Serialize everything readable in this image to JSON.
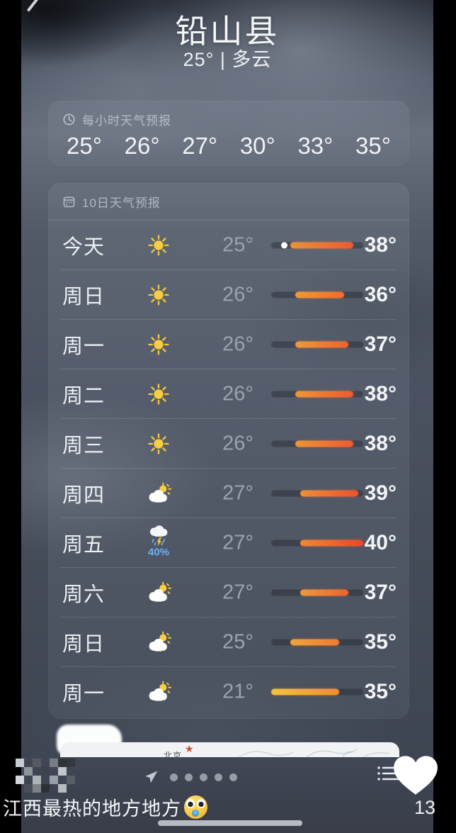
{
  "colors": {
    "accent_orange": "#ed5a2f",
    "accent_yellow": "#f0c43e",
    "precip_blue": "#6db2f4",
    "heart_white": "#ffffff"
  },
  "header": {
    "location": "铅山县",
    "subtitle": "25° | 多云"
  },
  "hourly": {
    "icon": "clock-icon",
    "title": "每小时天气预报",
    "temps": [
      "25°",
      "26°",
      "27°",
      "30°",
      "33°",
      "35°"
    ]
  },
  "daily": {
    "icon": "calendar-icon",
    "title": "10日天气预报",
    "temp_min": 21,
    "temp_max": 40,
    "rows": [
      {
        "day": "今天",
        "icon": "sun",
        "low": 25,
        "high": 38,
        "low_label": "25°",
        "high_label": "38°",
        "current_dot": true,
        "bar": [
          "#e8923b",
          "#ed5a2f"
        ]
      },
      {
        "day": "周日",
        "icon": "sun",
        "low": 26,
        "high": 36,
        "low_label": "26°",
        "high_label": "36°",
        "current_dot": false,
        "bar": [
          "#ec9a38",
          "#ed6c2e"
        ]
      },
      {
        "day": "周一",
        "icon": "sun",
        "low": 26,
        "high": 37,
        "low_label": "26°",
        "high_label": "37°",
        "current_dot": false,
        "bar": [
          "#ec9a38",
          "#ed632e"
        ]
      },
      {
        "day": "周二",
        "icon": "sun",
        "low": 26,
        "high": 38,
        "low_label": "26°",
        "high_label": "38°",
        "current_dot": false,
        "bar": [
          "#ec9538",
          "#ed5a2f"
        ]
      },
      {
        "day": "周三",
        "icon": "sun",
        "low": 26,
        "high": 38,
        "low_label": "26°",
        "high_label": "38°",
        "current_dot": false,
        "bar": [
          "#ec9538",
          "#ed5a2f"
        ]
      },
      {
        "day": "周四",
        "icon": "partly-cloudy",
        "low": 27,
        "high": 39,
        "low_label": "27°",
        "high_label": "39°",
        "current_dot": false,
        "bar": [
          "#ec8f37",
          "#ec512d"
        ]
      },
      {
        "day": "周五",
        "icon": "storm",
        "low": 27,
        "high": 40,
        "low_label": "27°",
        "high_label": "40°",
        "current_dot": false,
        "bar": [
          "#ec8a36",
          "#ea472b"
        ],
        "precip": "40%"
      },
      {
        "day": "周六",
        "icon": "partly-cloudy",
        "low": 27,
        "high": 37,
        "low_label": "27°",
        "high_label": "37°",
        "current_dot": false,
        "bar": [
          "#ec9a38",
          "#ed632e"
        ]
      },
      {
        "day": "周日",
        "icon": "partly-cloudy",
        "low": 25,
        "high": 35,
        "low_label": "25°",
        "high_label": "35°",
        "current_dot": false,
        "bar": [
          "#eda43a",
          "#ee7a30"
        ]
      },
      {
        "day": "周一",
        "icon": "partly-cloudy",
        "low": 21,
        "high": 35,
        "low_label": "21°",
        "high_label": "35°",
        "current_dot": false,
        "bar": [
          "#f0c43e",
          "#ee8c33"
        ]
      }
    ]
  },
  "map_card": {
    "city": "北京",
    "star": "★"
  },
  "player": {
    "caption": "江西最热的地方地方",
    "caption_emoji": "astonished-face-emoji",
    "like_count": "13",
    "page_dots": 5
  }
}
